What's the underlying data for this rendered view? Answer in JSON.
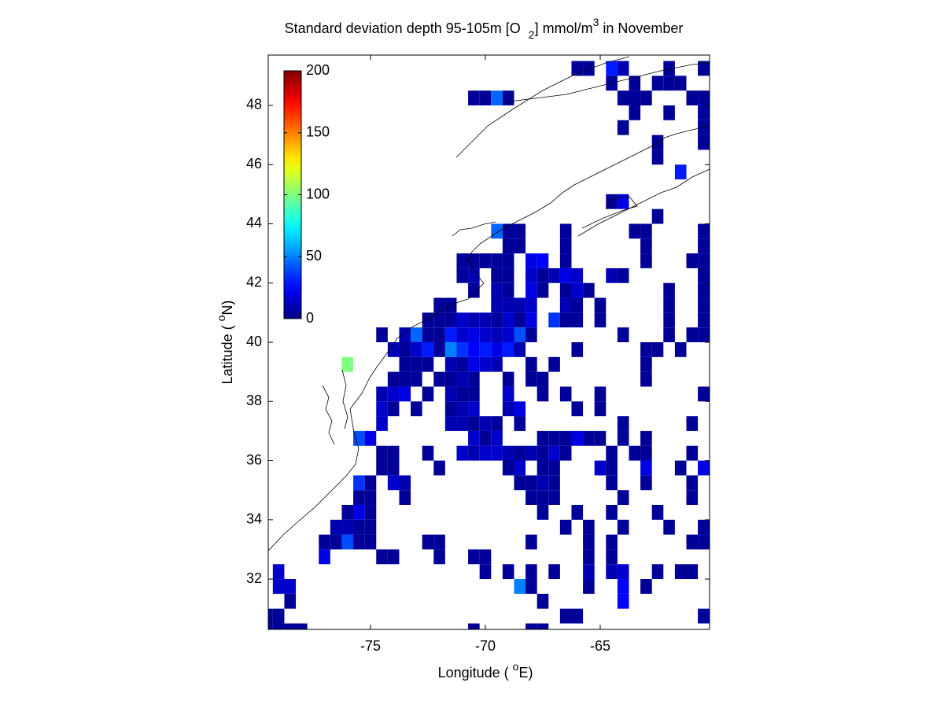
{
  "chart_data": {
    "type": "heatmap",
    "title": [
      {
        "text": "Standard deviation depth 95-105m [O"
      },
      {
        "text": "2",
        "script": "sub"
      },
      {
        "text": "] mmol/m"
      },
      {
        "text": "3",
        "script": "sup"
      },
      {
        "text": " in November"
      }
    ],
    "xlabel": [
      {
        "text": "Longitude ( "
      },
      {
        "text": "o",
        "script": "sup"
      },
      {
        "text": "E)"
      }
    ],
    "ylabel": [
      {
        "text": "Latitude ( "
      },
      {
        "text": "o",
        "script": "sup"
      },
      {
        "text": "N)"
      }
    ],
    "xlim": [
      -79.45,
      -60.24
    ],
    "ylim": [
      30.3,
      49.7
    ],
    "xticks": [
      -75,
      -70,
      -65
    ],
    "yticks": [
      32,
      34,
      36,
      38,
      40,
      42,
      44,
      46,
      48
    ],
    "colormap": "jet",
    "colorbar": {
      "lim": [
        0,
        200
      ],
      "ticks": [
        0,
        50,
        100,
        150,
        200
      ]
    },
    "rows": [
      {
        "lat": 49.25,
        "lon": [
          -66,
          -65.5,
          -64.5,
          -64,
          -62,
          -60.5
        ],
        "values": [
          5,
          5,
          30,
          10,
          5,
          5
        ]
      },
      {
        "lat": 48.75,
        "lon": [
          -64.5,
          -63.5,
          -62.5,
          -62,
          -61.5
        ],
        "values": [
          5,
          5,
          5,
          5,
          5
        ]
      },
      {
        "lat": 48.25,
        "lon": [
          -70.5,
          -70,
          -69.5,
          -69,
          -64,
          -63.5,
          -63,
          -61,
          -60.5
        ],
        "values": [
          5,
          5,
          45,
          5,
          5,
          5,
          5,
          5,
          5
        ]
      },
      {
        "lat": 47.75,
        "lon": [
          -63.5,
          -62,
          -60.5
        ],
        "values": [
          5,
          5,
          5
        ]
      },
      {
        "lat": 47.25,
        "lon": [
          -64,
          -60.5
        ],
        "values": [
          5,
          5
        ]
      },
      {
        "lat": 46.75,
        "lon": [
          -62.5,
          -60.5
        ],
        "values": [
          5,
          5
        ]
      },
      {
        "lat": 46.25,
        "lon": [
          -62.5
        ],
        "values": [
          5
        ]
      },
      {
        "lat": 45.75,
        "lon": [
          -61.5
        ],
        "values": [
          30
        ]
      },
      {
        "lat": 44.75,
        "lon": [
          -64.5,
          -64
        ],
        "values": [
          5,
          20
        ]
      },
      {
        "lat": 44.25,
        "lon": [
          -62.5
        ],
        "values": [
          5
        ]
      },
      {
        "lat": 43.75,
        "lon": [
          -69.5,
          -69,
          -68.5,
          -66.5,
          -63.5,
          -63,
          -60.5
        ],
        "values": [
          45,
          5,
          5,
          5,
          5,
          5,
          5
        ]
      },
      {
        "lat": 43.25,
        "lon": [
          -69,
          -68.5,
          -66.5,
          -63,
          -60.5
        ],
        "values": [
          5,
          5,
          5,
          5,
          5
        ]
      },
      {
        "lat": 42.75,
        "lon": [
          -71,
          -70.5,
          -70,
          -69.5,
          -69,
          -68,
          -67.5,
          -66.5,
          -63,
          -61,
          -60.5
        ],
        "values": [
          5,
          5,
          5,
          5,
          5,
          20,
          25,
          5,
          5,
          5,
          5
        ]
      },
      {
        "lat": 42.25,
        "lon": [
          -71,
          -70.5,
          -69.5,
          -69,
          -68,
          -67.5,
          -67,
          -66.5,
          -66,
          -64.5,
          -64,
          -60.5
        ],
        "values": [
          5,
          10,
          5,
          5,
          15,
          5,
          10,
          20,
          15,
          10,
          5,
          5
        ]
      },
      {
        "lat": 41.75,
        "lon": [
          -70.5,
          -69.5,
          -69,
          -68,
          -67.5,
          -66.5,
          -66,
          -65.5,
          -62,
          -60.5
        ],
        "values": [
          5,
          10,
          5,
          20,
          5,
          5,
          15,
          5,
          5,
          5
        ]
      },
      {
        "lat": 41.25,
        "lon": [
          -72,
          -71.5,
          -69.5,
          -69,
          -68.5,
          -68,
          -66.5,
          -66,
          -65,
          -62,
          -60.5
        ],
        "values": [
          5,
          5,
          10,
          10,
          10,
          15,
          10,
          5,
          5,
          5,
          5
        ]
      },
      {
        "lat": 40.75,
        "lon": [
          -72.5,
          -72,
          -71.5,
          -71,
          -70.5,
          -70,
          -69.5,
          -69,
          -68.5,
          -68,
          -67,
          -66.5,
          -66,
          -65,
          -62,
          -60.5
        ],
        "values": [
          5,
          5,
          5,
          15,
          10,
          10,
          5,
          15,
          5,
          20,
          35,
          5,
          5,
          5,
          5,
          5
        ]
      },
      {
        "lat": 40.25,
        "lon": [
          -74.5,
          -73.5,
          -73,
          -72.5,
          -72,
          -71.5,
          -71,
          -70.5,
          -70,
          -69.5,
          -69,
          -68.5,
          -68,
          -64,
          -62,
          -61,
          -60.5
        ],
        "values": [
          5,
          10,
          45,
          5,
          5,
          30,
          15,
          20,
          15,
          10,
          15,
          40,
          5,
          5,
          5,
          5,
          5
        ]
      },
      {
        "lat": 39.75,
        "lon": [
          -74,
          -73.5,
          -73,
          -72.5,
          -72,
          -71.5,
          -71,
          -70.5,
          -70,
          -69.5,
          -69,
          -68.5,
          -66,
          -63,
          -62.5,
          -61.5
        ],
        "values": [
          10,
          5,
          15,
          30,
          5,
          50,
          35,
          25,
          30,
          20,
          30,
          10,
          5,
          5,
          5,
          5
        ]
      },
      {
        "lat": 39.25,
        "lon": [
          -76,
          -73.5,
          -73,
          -72.5,
          -71.5,
          -71,
          -70.5,
          -70,
          -69.5,
          -68,
          -67,
          -63
        ],
        "values": [
          100,
          5,
          5,
          5,
          10,
          5,
          20,
          15,
          10,
          5,
          5,
          5
        ]
      },
      {
        "lat": 38.75,
        "lon": [
          -74,
          -73.5,
          -73,
          -72,
          -71.5,
          -71,
          -70.5,
          -69,
          -68,
          -67.5,
          -63
        ],
        "values": [
          5,
          5,
          5,
          5,
          5,
          10,
          5,
          5,
          5,
          5,
          5
        ]
      },
      {
        "lat": 38.25,
        "lon": [
          -74.5,
          -74,
          -73.5,
          -72.5,
          -71.5,
          -71,
          -70.5,
          -69,
          -67.5,
          -66.5,
          -65,
          -60.5
        ],
        "values": [
          10,
          15,
          20,
          5,
          10,
          5,
          5,
          15,
          5,
          5,
          5,
          5
        ]
      },
      {
        "lat": 37.75,
        "lon": [
          -74.5,
          -74,
          -73,
          -71.5,
          -71,
          -70.5,
          -69,
          -68.5,
          -66,
          -65
        ],
        "values": [
          15,
          5,
          5,
          5,
          10,
          15,
          10,
          20,
          5,
          5
        ]
      },
      {
        "lat": 37.25,
        "lon": [
          -74.5,
          -71.5,
          -71,
          -70.5,
          -70,
          -69.5,
          -68.5,
          -64,
          -61
        ],
        "values": [
          15,
          10,
          10,
          5,
          10,
          5,
          5,
          5,
          5
        ]
      },
      {
        "lat": 36.75,
        "lon": [
          -75.5,
          -75,
          -70.5,
          -70,
          -69.5,
          -67.5,
          -67,
          -66.5,
          -66,
          -65.5,
          -65,
          -64,
          -63
        ],
        "values": [
          40,
          20,
          15,
          5,
          15,
          5,
          5,
          5,
          20,
          5,
          5,
          5,
          5
        ]
      },
      {
        "lat": 36.25,
        "lon": [
          -74.5,
          -74,
          -72.5,
          -71,
          -70.5,
          -70,
          -69.5,
          -69,
          -68.5,
          -68,
          -67.5,
          -67,
          -66.5,
          -64.5,
          -63.5,
          -63,
          -61
        ],
        "values": [
          5,
          5,
          5,
          15,
          10,
          15,
          15,
          10,
          5,
          10,
          5,
          15,
          5,
          5,
          5,
          5,
          5
        ]
      },
      {
        "lat": 35.75,
        "lon": [
          -74.5,
          -74,
          -72,
          -69,
          -68.5,
          -67.5,
          -67,
          -65,
          -64.5,
          -63,
          -61.5,
          -60.5
        ],
        "values": [
          5,
          5,
          5,
          5,
          15,
          5,
          5,
          15,
          5,
          20,
          5,
          20
        ]
      },
      {
        "lat": 35.25,
        "lon": [
          -75.5,
          -75,
          -74,
          -73.5,
          -68.5,
          -68,
          -67.5,
          -67,
          -64.5,
          -63,
          -61
        ],
        "values": [
          35,
          5,
          15,
          10,
          5,
          5,
          10,
          5,
          5,
          5,
          5
        ]
      },
      {
        "lat": 34.75,
        "lon": [
          -75.5,
          -75,
          -73.5,
          -68,
          -67.5,
          -67,
          -64,
          -61
        ],
        "values": [
          5,
          5,
          5,
          5,
          5,
          5,
          5,
          5
        ]
      },
      {
        "lat": 34.25,
        "lon": [
          -76,
          -75.5,
          -75,
          -67.5,
          -66,
          -64.5,
          -62.5
        ],
        "values": [
          5,
          20,
          5,
          5,
          5,
          5,
          5
        ]
      },
      {
        "lat": 33.75,
        "lon": [
          -76.5,
          -76,
          -75.5,
          -75,
          -66.5,
          -65.5,
          -64,
          -62,
          -60.5
        ],
        "values": [
          10,
          10,
          5,
          5,
          5,
          5,
          5,
          5,
          5
        ]
      },
      {
        "lat": 33.25,
        "lon": [
          -77,
          -76.5,
          -76,
          -75.5,
          -75,
          -72.5,
          -72,
          -68,
          -65.5,
          -64.5,
          -61,
          -60.5
        ],
        "values": [
          5,
          5,
          40,
          5,
          5,
          5,
          5,
          5,
          5,
          5,
          5,
          5
        ]
      },
      {
        "lat": 32.75,
        "lon": [
          -77,
          -74.5,
          -74,
          -72,
          -70.5,
          -70,
          -65.5,
          -64.5
        ],
        "values": [
          20,
          5,
          5,
          5,
          5,
          5,
          5,
          5
        ]
      },
      {
        "lat": 32.25,
        "lon": [
          -79,
          -70,
          -69,
          -68,
          -67,
          -65.5,
          -64.5,
          -64,
          -62.5,
          -61.5,
          -61
        ],
        "values": [
          15,
          5,
          5,
          5,
          5,
          10,
          10,
          15,
          5,
          5,
          5
        ]
      },
      {
        "lat": 31.75,
        "lon": [
          -79,
          -78.5,
          -68.5,
          -68,
          -65.5,
          -64,
          -63
        ],
        "values": [
          15,
          15,
          50,
          5,
          5,
          25,
          5
        ]
      },
      {
        "lat": 31.25,
        "lon": [
          -78.5,
          -67.5,
          -64
        ],
        "values": [
          5,
          5,
          25
        ]
      },
      {
        "lat": 30.75,
        "lon": [
          -79.5,
          -79,
          -66.5,
          -66,
          -60.5
        ],
        "values": [
          5,
          5,
          5,
          5,
          5
        ]
      },
      {
        "lat": 30.25,
        "lon": [
          -79.5,
          -79,
          -78.5,
          -78,
          -70.5,
          -68,
          -67.5
        ],
        "values": [
          5,
          5,
          5,
          5,
          5,
          5,
          5
        ]
      }
    ]
  }
}
